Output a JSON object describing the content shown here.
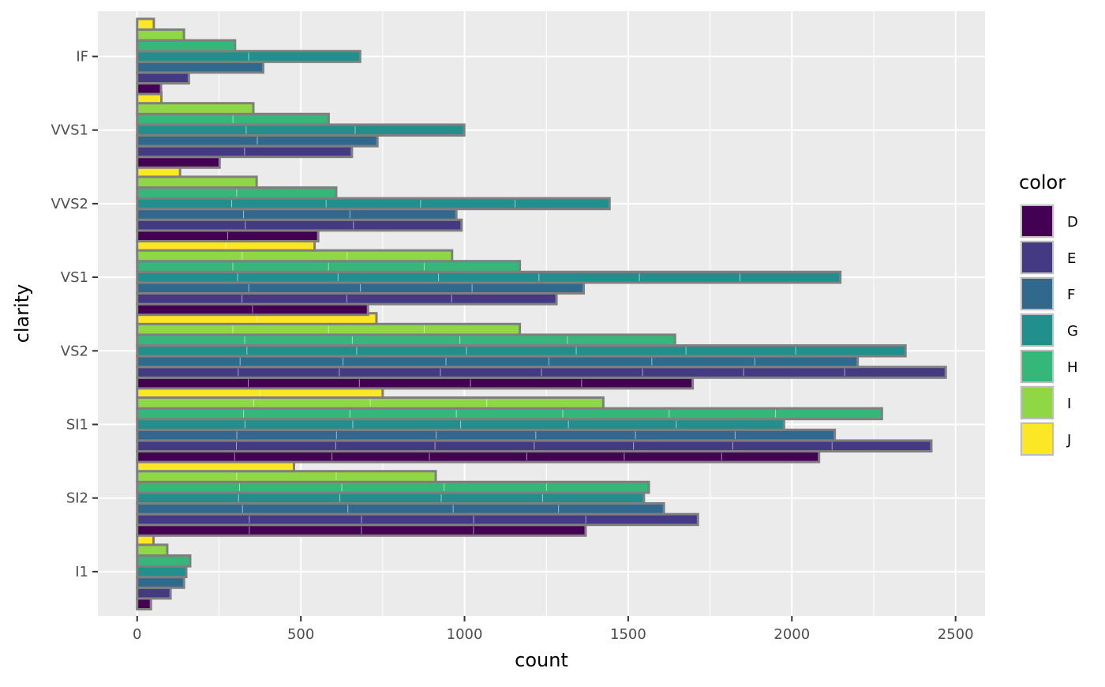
{
  "chart_data": {
    "type": "bar",
    "orientation": "horizontal",
    "position": "dodge",
    "xlabel": "count",
    "ylabel": "clarity",
    "xlim": [
      -120,
      2590
    ],
    "xticks": [
      0,
      500,
      1000,
      1500,
      2000,
      2500
    ],
    "xtick_labels": [
      "0",
      "500",
      "1000",
      "1500",
      "2000",
      "2500"
    ],
    "categories": [
      "I1",
      "SI2",
      "SI1",
      "VS2",
      "VS1",
      "VVS2",
      "VVS1",
      "IF"
    ],
    "grid": true,
    "legend": {
      "title": "color",
      "placement": "right"
    },
    "bar_outline_color": "#7f7f7f",
    "panel_background": "#ebebeb",
    "series": [
      {
        "name": "D",
        "color": "#440154",
        "values": [
          42,
          1370,
          2083,
          1697,
          705,
          553,
          252,
          73
        ]
      },
      {
        "name": "E",
        "color": "#443A83",
        "values": [
          102,
          1713,
          2426,
          2470,
          1281,
          991,
          656,
          158
        ]
      },
      {
        "name": "F",
        "color": "#31688E",
        "values": [
          143,
          1609,
          2131,
          2201,
          1364,
          975,
          734,
          385
        ]
      },
      {
        "name": "G",
        "color": "#21908C",
        "values": [
          150,
          1548,
          1976,
          2347,
          2148,
          1443,
          999,
          681
        ]
      },
      {
        "name": "H",
        "color": "#35B779",
        "values": [
          162,
          1563,
          2275,
          1643,
          1169,
          608,
          585,
          299
        ]
      },
      {
        "name": "I",
        "color": "#8FD744",
        "values": [
          92,
          912,
          1424,
          1169,
          962,
          365,
          355,
          143
        ]
      },
      {
        "name": "J",
        "color": "#FDE725",
        "values": [
          50,
          479,
          750,
          731,
          542,
          131,
          74,
          51
        ]
      }
    ]
  }
}
